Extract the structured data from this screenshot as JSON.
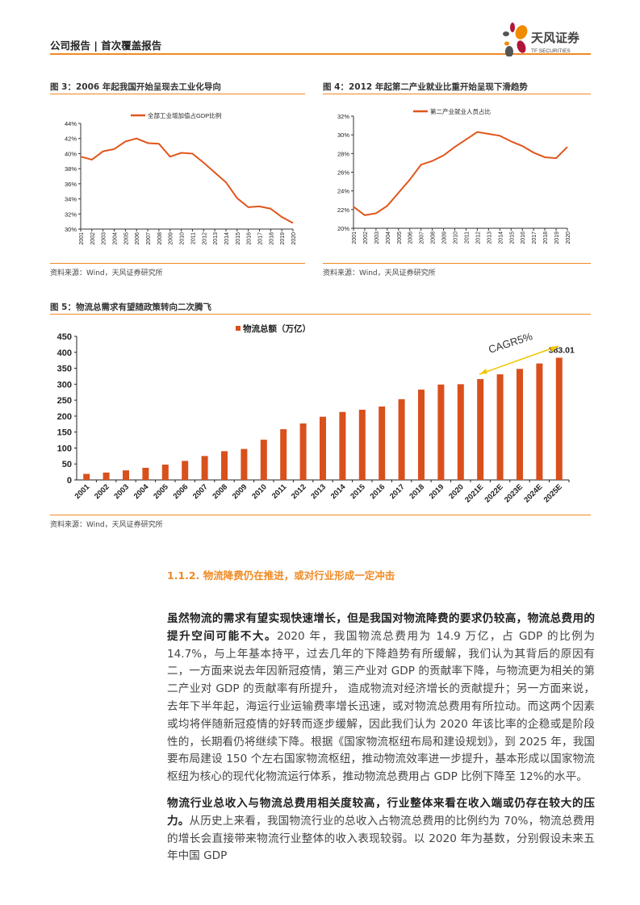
{
  "header": {
    "title": "公司报告 | 首次覆盖报告",
    "logo_cn": "天风证券",
    "logo_en": "TF SECURITIES",
    "accent": "#f08a24"
  },
  "fig3": {
    "title": "图 3：2006 年起我国开始呈现去工业化导向",
    "source": "资料来源：Wind，天风证券研究所",
    "chart_data": {
      "type": "line",
      "legend": "全部工业增加值占GDP比例",
      "color": "#e0561c",
      "ylim": [
        30,
        44
      ],
      "yticks": [
        "30%",
        "32%",
        "34%",
        "36%",
        "38%",
        "40%",
        "42%",
        "44%"
      ],
      "x": [
        "2001",
        "2002",
        "2003",
        "2004",
        "2005",
        "2006",
        "2007",
        "2008",
        "2009",
        "2010",
        "2011",
        "2012",
        "2013",
        "2014",
        "2015",
        "2016",
        "2017",
        "2018",
        "2019",
        "2020"
      ],
      "values": [
        39.6,
        39.2,
        40.3,
        40.6,
        41.6,
        42.0,
        41.4,
        41.3,
        39.6,
        40.1,
        40.0,
        38.8,
        37.5,
        36.2,
        34.1,
        32.9,
        33.0,
        32.7,
        31.6,
        30.8
      ]
    }
  },
  "fig4": {
    "title": "图 4：2012 年起第二产业就业比重开始呈现下滑趋势",
    "source": "资料来源：Wind，天风证券研究所",
    "chart_data": {
      "type": "line",
      "legend": "第二产业就业人员占比",
      "color": "#e0561c",
      "ylim": [
        20,
        32
      ],
      "yticks": [
        "20%",
        "22%",
        "24%",
        "26%",
        "28%",
        "30%",
        "32%"
      ],
      "x": [
        "2001",
        "2002",
        "2003",
        "2004",
        "2005",
        "2006",
        "2007",
        "2008",
        "2009",
        "2010",
        "2011",
        "2012",
        "2013",
        "2014",
        "2015",
        "2016",
        "2017",
        "2018",
        "2019",
        "2020"
      ],
      "values": [
        22.3,
        21.4,
        21.6,
        22.4,
        23.8,
        25.2,
        26.8,
        27.2,
        27.8,
        28.7,
        29.5,
        30.3,
        30.1,
        29.9,
        29.3,
        28.8,
        28.1,
        27.6,
        27.5,
        28.7
      ]
    }
  },
  "fig5": {
    "title": "图 5：物流总需求有望随政策转向二次腾飞",
    "source": "资料来源：Wind，天风证券研究所",
    "chart_data": {
      "type": "bar",
      "legend": "物流总额（万亿）",
      "color": "#d9501c",
      "ylim": [
        0,
        450
      ],
      "yticks": [
        "0",
        "50",
        "100",
        "150",
        "200",
        "250",
        "300",
        "350",
        "400",
        "450"
      ],
      "categories": [
        "2001",
        "2002",
        "2003",
        "2004",
        "2005",
        "2006",
        "2007",
        "2008",
        "2009",
        "2010",
        "2011",
        "2012",
        "2013",
        "2014",
        "2015",
        "2016",
        "2017",
        "2018",
        "2019",
        "2020",
        "2021E",
        "2022E",
        "2023E",
        "2024E",
        "2025E"
      ],
      "values": [
        19,
        23,
        30,
        38,
        48,
        59.6,
        75,
        90,
        97,
        126,
        159,
        177,
        198,
        213,
        220,
        230,
        253,
        283,
        299,
        300,
        316,
        331,
        348,
        365,
        383.01
      ],
      "data_label": "383.01",
      "annotation": "CAGR5%",
      "annotation_color": "#f5c400"
    }
  },
  "section": {
    "heading": "1.1.2. 物流降费仍在推进，或对行业形成一定冲击"
  },
  "para1": {
    "bold": "虽然物流的需求有望实现快速增长，但是我国对物流降费的要求仍较高，物流总费用的提升空间可能不大。",
    "text": "2020 年，我国物流总费用为 14.9 万亿，占 GDP 的比例为 14.7%，与上年基本持平，过去几年的下降趋势有所缓解，我们认为其背后的原因有二，一方面来说去年因新冠疫情，第三产业对 GDP 的贡献率下降，与物流更为相关的第二产业对 GDP 的贡献率有所提升， 造成物流对经济增长的贡献提升；另一方面来说，去年下半年起，海运行业运输费率增长迅速，或对物流总费用有所拉动。而这两个因素或均将伴随新冠疫情的好转而逐步缓解，因此我们认为 2020 年该比率的企稳或是阶段性的，长期看仍将继续下降。根据《国家物流枢纽布局和建设规划》，到 2025 年，我国要布局建设 150 个左右国家物流枢纽，推动物流效率进一步提升，基本形成以国家物流枢纽为核心的现代化物流运行体系，推动物流总费用占 GDP 比例下降至 12%的水平。"
  },
  "para2": {
    "bold": "物流行业总收入与物流总费用相关度较高，行业整体来看在收入端或仍存在较大的压力。",
    "text": "从历史上来看，我国物流行业的总收入占物流总费用的比例约为 70%，物流总费用的增长会直接带来物流行业整体的收入表现较弱。以 2020 年为基数，分别假设未来五年中国 GDP"
  }
}
